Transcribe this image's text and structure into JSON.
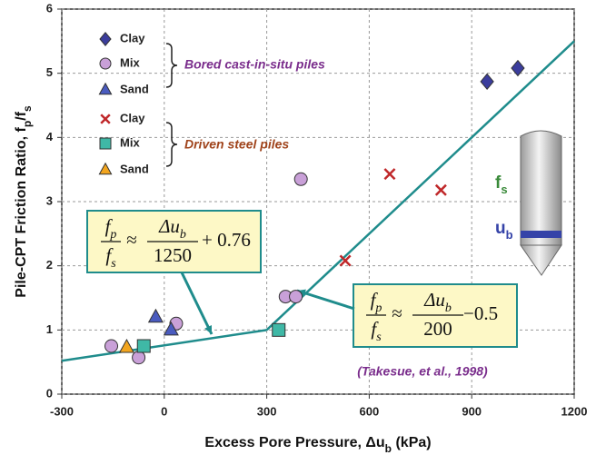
{
  "chart_data": {
    "type": "scatter",
    "xlabel_parts": [
      "Excess Pore Pressure, Δu",
      "b",
      " (kPa)"
    ],
    "ylabel_parts": [
      "Pile-CPT Friction Ratio, f",
      "p",
      "/f",
      "s"
    ],
    "xlim": [
      -300,
      1200
    ],
    "xticks": [
      -300,
      0,
      300,
      600,
      900,
      1200
    ],
    "ylim": [
      0,
      6
    ],
    "yticks": [
      0,
      1,
      2,
      3,
      4,
      5,
      6
    ],
    "grid": true,
    "series": [
      {
        "name": "Clay",
        "color": "#3b3d9c",
        "marker": "diamond",
        "x": [
          945,
          1035
        ],
        "values": [
          4.87,
          5.08
        ]
      },
      {
        "name": "Mix",
        "color": "#c9a0d8",
        "marker": "circle",
        "x": [
          400,
          355,
          385,
          -155,
          -75,
          35
        ],
        "values": [
          3.35,
          1.52,
          1.52,
          0.75,
          0.57,
          1.1
        ]
      },
      {
        "name": "Sand",
        "color": "#4a5bbf",
        "marker": "triangle",
        "x": [
          -25,
          20
        ],
        "values": [
          1.2,
          1.0
        ]
      },
      {
        "name": "Clay",
        "color": "#c0282a",
        "marker": "cross",
        "x": [
          530,
          660,
          810
        ],
        "values": [
          2.08,
          3.43,
          3.18
        ]
      },
      {
        "name": "Mix",
        "color": "#3fb8a6",
        "marker": "square",
        "x": [
          -60,
          335
        ],
        "values": [
          0.75,
          1.0
        ]
      },
      {
        "name": "Sand",
        "color": "#f2a51f",
        "marker": "triangle",
        "x": [
          -110
        ],
        "values": [
          0.73
        ]
      }
    ],
    "lines": [
      {
        "color": "#1f8c8c",
        "x": [
          -300,
          300
        ],
        "values": [
          0.52,
          1.0
        ]
      },
      {
        "color": "#1f8c8c",
        "x": [
          300,
          1200
        ],
        "values": [
          1.0,
          5.5
        ]
      }
    ],
    "legend_groups": [
      {
        "label": "Bored cast-in-situ piles",
        "color": "#7a2d8c"
      },
      {
        "label": "Driven steel piles",
        "color": "#a0441c"
      }
    ],
    "equations": [
      {
        "lhs_num": "f",
        "lhs_num_sub": "p",
        "lhs_den": "f",
        "lhs_den_sub": "s",
        "rel": "≈",
        "rhs_num": "Δu",
        "rhs_num_sub": "b",
        "rhs_den": "1250",
        "rhs_tail": "+ 0.76"
      },
      {
        "lhs_num": "f",
        "lhs_num_sub": "p",
        "lhs_den": "f",
        "lhs_den_sub": "s",
        "rel": "≈",
        "rhs_num": "Δu",
        "rhs_num_sub": "b",
        "rhs_den": "200",
        "rhs_tail": "−0.5"
      }
    ],
    "annotations": [
      {
        "text": "(Takesue, et al., 1998)",
        "color": "#7a2d8c"
      }
    ],
    "cone_labels": [
      {
        "text": "f",
        "sub": "s",
        "color": "#3a8a3a"
      },
      {
        "text": "u",
        "sub": "b",
        "color": "#3543a8"
      }
    ]
  }
}
